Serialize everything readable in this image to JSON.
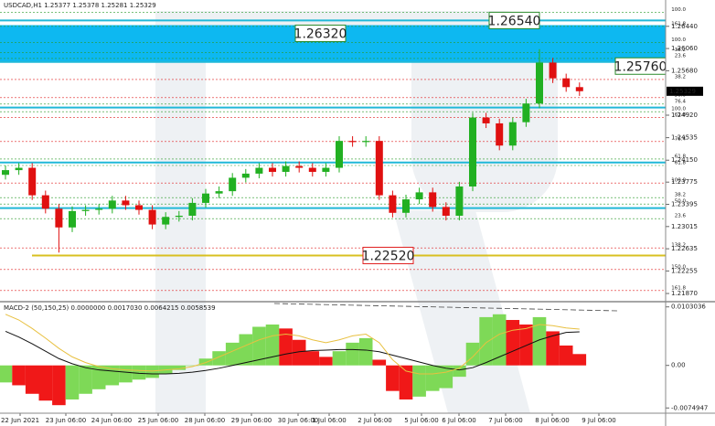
{
  "chart_data": [
    {
      "type": "candlestick",
      "title": "USDCAD,H1 1.25377 1.25378 1.25281 1.25329",
      "x_labels": [
        "22 Jun 2021",
        "23 Jun 06:00",
        "24 Jun 06:00",
        "25 Jun 06:00",
        "28 Jun 06:00",
        "29 Jun 06:00",
        "30 Jun 06:00",
        "1 Jul 06:00",
        "2 Jul 06:00",
        "5 Jul 06:00",
        "6 Jul 06:00",
        "7 Jul 06:00",
        "8 Jul 06:00",
        "9 Jul 06:00"
      ],
      "open": [
        1.239,
        1.2398,
        1.2402,
        1.2355,
        1.2332,
        1.23,
        1.2328,
        1.233,
        1.2332,
        1.2346,
        1.2338,
        1.233,
        1.2305,
        1.2318,
        1.232,
        1.2342,
        1.2358,
        1.2362,
        1.2385,
        1.2392,
        1.2402,
        1.2395,
        1.2405,
        1.2402,
        1.2395,
        1.2402,
        1.2448,
        1.2446,
        1.2448,
        1.2355,
        1.2325,
        1.2348,
        1.236,
        1.2335,
        1.232,
        1.237,
        1.2488,
        1.2478,
        1.244,
        1.248,
        1.2512,
        1.2582,
        1.2555,
        1.254
      ],
      "high": [
        1.2406,
        1.241,
        1.241,
        1.2363,
        1.234,
        1.2336,
        1.2338,
        1.234,
        1.2354,
        1.2354,
        1.2346,
        1.2338,
        1.2326,
        1.2328,
        1.235,
        1.2366,
        1.237,
        1.2393,
        1.24,
        1.241,
        1.241,
        1.2413,
        1.2413,
        1.241,
        1.241,
        1.2456,
        1.2456,
        1.2456,
        1.2456,
        1.2363,
        1.2356,
        1.2368,
        1.2368,
        1.2343,
        1.2378,
        1.2496,
        1.2496,
        1.2486,
        1.2488,
        1.252,
        1.2605,
        1.259,
        1.2563,
        1.2548
      ],
      "low": [
        1.2382,
        1.239,
        1.2347,
        1.2324,
        1.2257,
        1.2292,
        1.232,
        1.2322,
        1.2324,
        1.233,
        1.2322,
        1.2297,
        1.2297,
        1.231,
        1.2312,
        1.2334,
        1.235,
        1.2354,
        1.2377,
        1.2384,
        1.2387,
        1.2387,
        1.2394,
        1.2387,
        1.2387,
        1.2394,
        1.2438,
        1.2438,
        1.2347,
        1.2317,
        1.2317,
        1.234,
        1.2327,
        1.2312,
        1.2312,
        1.2362,
        1.247,
        1.2432,
        1.2432,
        1.2472,
        1.2504,
        1.2547,
        1.2532,
        1.2525
      ],
      "close": [
        1.2398,
        1.2402,
        1.2355,
        1.2332,
        1.23,
        1.2328,
        1.233,
        1.2332,
        1.2346,
        1.2338,
        1.233,
        1.2305,
        1.2318,
        1.232,
        1.2342,
        1.2358,
        1.2362,
        1.2385,
        1.2392,
        1.2402,
        1.2395,
        1.2405,
        1.2402,
        1.2395,
        1.2402,
        1.2448,
        1.2446,
        1.2448,
        1.2355,
        1.2325,
        1.2348,
        1.236,
        1.2335,
        1.232,
        1.237,
        1.2488,
        1.2478,
        1.244,
        1.248,
        1.2512,
        1.2582,
        1.2555,
        1.254,
        1.2533
      ],
      "up_color": "#22b022",
      "down_color": "#e01010",
      "ylim": [
        1.2173,
        1.2689
      ],
      "yticks": [
        {
          "value": 1.2644,
          "label": "1.26440"
        },
        {
          "value": 1.2606,
          "label": "1.26060"
        },
        {
          "value": 1.2568,
          "label": "1.25680"
        },
        {
          "value": 1.2492,
          "label": "1.24920"
        },
        1.24535,
        {
          "value": 1.2415,
          "label": "1.24150"
        },
        1.23775,
        1.23395,
        1.23015,
        1.22635,
        1.22255,
        {
          "value": 1.2187,
          "label": "1.21870"
        }
      ],
      "last_price": 1.25329,
      "zone": [
        1.2583,
        1.2646
      ],
      "zone_color": "#00b4f0",
      "levels": [
        1.2654,
        1.2583,
        1.2505,
        1.2411,
        1.2333
      ],
      "level_color": "#20b8d8",
      "support": 1.2252,
      "support_color": "#d8c020",
      "annotations": [
        {
          "value": 1.2654,
          "label": "1.26540",
          "color": "#2a8a2a"
        },
        {
          "value": 1.2632,
          "label": "1.26320",
          "color": "#2a8a2a"
        },
        {
          "value": 1.2576,
          "label": "1.25760",
          "color": "#2a8a2a"
        },
        {
          "value": 1.2252,
          "label": "1.22520",
          "color": "#e02020"
        }
      ],
      "fib_levels": [
        {
          "label": "100.0",
          "price": 1.2668,
          "color": "#2a9a2a"
        },
        {
          "label": "161.8",
          "price": 1.2644,
          "color": "#2a9a2a"
        },
        {
          "label": "100.0",
          "price": 1.2616,
          "color": "#2a9a2a"
        },
        {
          "label": "38.2",
          "price": 1.2599,
          "color": "#2a9a2a"
        },
        {
          "label": "23.6",
          "price": 1.2589,
          "color": "#2a9a2a"
        },
        {
          "label": "38.2",
          "price": 1.2553,
          "color": "#e02020"
        },
        {
          "label": "50.0",
          "price": 1.2522,
          "color": "#e02020"
        },
        {
          "label": "76.4",
          "price": 1.2511,
          "color": "#2a9a2a"
        },
        {
          "label": "100.0",
          "price": 1.2498,
          "color": "#2a9a2a"
        },
        {
          "label": "61.8",
          "price": 1.2488,
          "color": "#e02020"
        },
        {
          "label": "76.4",
          "price": 1.2447,
          "color": "#e02020"
        },
        {
          "label": "61.8",
          "price": 1.2417,
          "color": "#2a9a2a"
        },
        {
          "label": "61.8",
          "price": 1.2406,
          "color": "#2a9a2a"
        },
        {
          "label": "100.0",
          "price": 1.2376,
          "color": "#e02020"
        },
        {
          "label": "38.2",
          "price": 1.2351,
          "color": "#2a9a2a"
        },
        {
          "label": "50.0",
          "price": 1.234,
          "color": "#2a9a2a"
        },
        {
          "label": "23.6",
          "price": 1.2315,
          "color": "#2a9a2a"
        },
        {
          "label": "138.2",
          "price": 1.2265,
          "color": "#e02020"
        },
        {
          "label": "150.0",
          "price": 1.2228,
          "color": "#e02020"
        },
        {
          "label": "161.8",
          "price": 1.2192,
          "color": "#e02020"
        }
      ]
    },
    {
      "type": "macd",
      "title": "MACD-2 (50,150,25) 0.0000000 0.0017030 0.0064215 0.0058539",
      "histogram": [
        -0.003,
        -0.0035,
        -0.005,
        -0.0062,
        -0.007,
        -0.006,
        -0.005,
        -0.0042,
        -0.0035,
        -0.003,
        -0.0025,
        -0.0022,
        -0.0015,
        -0.0008,
        0.0,
        0.0012,
        0.0025,
        0.004,
        0.0055,
        0.0068,
        0.0072,
        0.0065,
        0.0045,
        0.0025,
        0.0015,
        0.0025,
        0.004,
        0.0048,
        0.001,
        -0.0045,
        -0.006,
        -0.0055,
        -0.0045,
        -0.004,
        -0.002,
        0.004,
        0.0085,
        0.009,
        0.008,
        0.0072,
        0.0085,
        0.006,
        0.0035,
        0.002
      ],
      "series": [
        {
          "color": "#111111",
          "values": [
            0.006,
            0.005,
            0.0038,
            0.0025,
            0.0012,
            0.0003,
            -0.0004,
            -0.0008,
            -0.001,
            -0.0012,
            -0.0014,
            -0.0015,
            -0.0015,
            -0.0014,
            -0.0012,
            -0.0009,
            -0.0005,
            0.0,
            0.0005,
            0.001,
            0.0015,
            0.002,
            0.0024,
            0.0026,
            0.0027,
            0.0028,
            0.0028,
            0.0027,
            0.0024,
            0.0018,
            0.0012,
            0.0006,
            0.0,
            -0.0005,
            -0.0008,
            -0.0004,
            0.0005,
            0.0015,
            0.0025,
            0.0035,
            0.0045,
            0.0052,
            0.0058,
            0.0059
          ]
        },
        {
          "color": "#e8c040",
          "values": [
            0.009,
            0.008,
            0.0065,
            0.0048,
            0.003,
            0.0015,
            0.0005,
            -0.0002,
            -0.0006,
            -0.0008,
            -0.0009,
            -0.001,
            -0.0008,
            -0.0006,
            -0.0002,
            0.0005,
            0.0015,
            0.0025,
            0.0035,
            0.0045,
            0.0052,
            0.0055,
            0.0052,
            0.0045,
            0.004,
            0.0045,
            0.0052,
            0.0055,
            0.004,
            0.001,
            -0.001,
            -0.0015,
            -0.0015,
            -0.0012,
            -0.0005,
            0.0015,
            0.004,
            0.0055,
            0.0062,
            0.0065,
            0.0072,
            0.007,
            0.0066,
            0.0064
          ]
        }
      ],
      "up_color": "#7ed957",
      "down_color": "#f01818",
      "ylim": [
        -0.0089,
        0.0109
      ],
      "yticks": [
        0.0103036,
        {
          "value": 0,
          "label": "0.00"
        },
        -0.0074947
      ]
    }
  ]
}
